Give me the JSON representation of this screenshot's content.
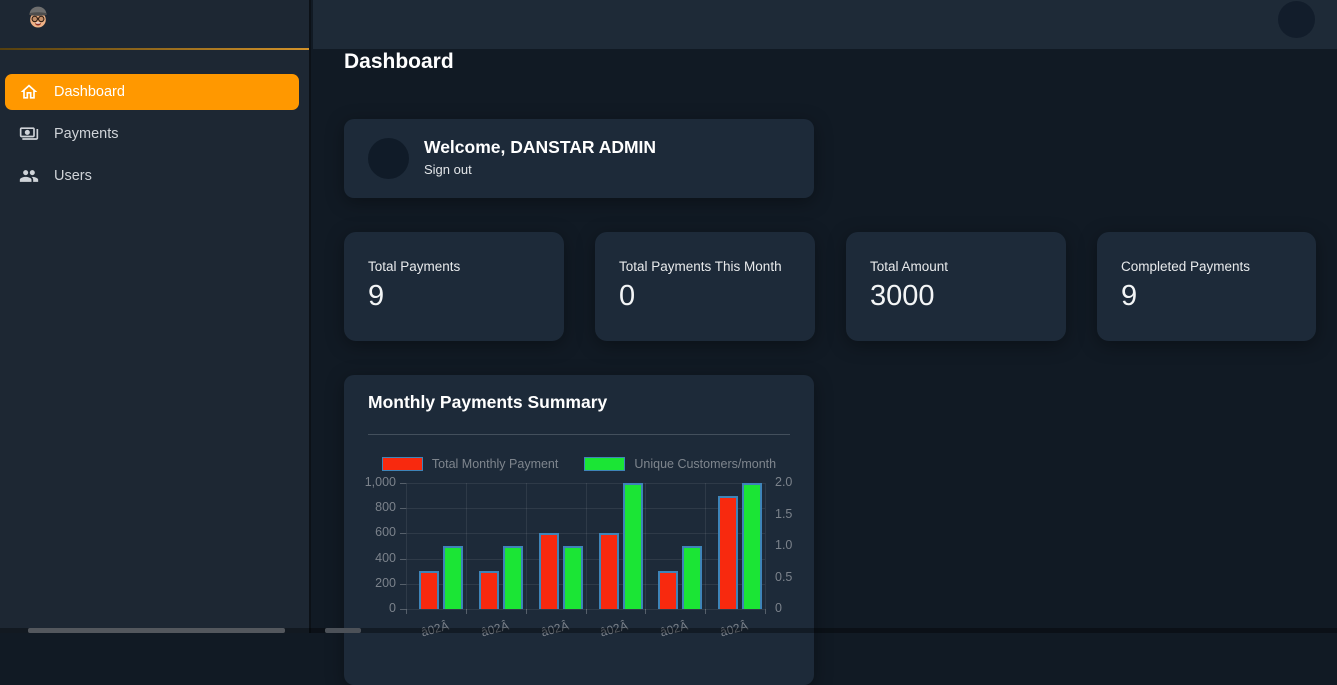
{
  "sidebar": {
    "logo_icon": "boy-with-cap-avatar-icon",
    "items": [
      {
        "label": "Dashboard",
        "icon": "home-icon",
        "active": true
      },
      {
        "label": "Payments",
        "icon": "payments-icon",
        "active": false
      },
      {
        "label": "Users",
        "icon": "users-icon",
        "active": false
      }
    ]
  },
  "topbar": {
    "avatar_icon": "user-avatar-circle"
  },
  "page": {
    "title": "Dashboard"
  },
  "welcome": {
    "heading": "Welcome, DANSTAR ADMIN",
    "signout_label": "Sign out"
  },
  "stats": [
    {
      "label": "Total Payments",
      "value": "9"
    },
    {
      "label": "Total Payments This Month",
      "value": "0"
    },
    {
      "label": "Total Amount",
      "value": "3000"
    },
    {
      "label": "Completed Payments",
      "value": "9"
    }
  ],
  "chart_card": {
    "title": "Monthly Payments Summary"
  },
  "chart_data": {
    "type": "bar",
    "title": "Monthly Payments Summary",
    "categories": [
      "â02Â",
      "â02Â",
      "â02Â",
      "â02Â",
      "â02Â",
      "â02Â"
    ],
    "series": [
      {
        "name": "Total Monthly Payment",
        "axis": "left",
        "color": "#f8290e",
        "values": [
          300,
          300,
          600,
          600,
          300,
          900
        ]
      },
      {
        "name": "Unique Customers/month",
        "axis": "right",
        "color": "#1be535",
        "values": [
          1,
          1,
          1,
          2,
          1,
          2
        ]
      }
    ],
    "left_axis": {
      "min": 0,
      "max": 1000,
      "tick_labels": [
        "0",
        "200",
        "400",
        "600",
        "800",
        "1,000"
      ]
    },
    "right_axis": {
      "min": 0,
      "max": 2,
      "tick_labels": [
        "0",
        "0.5",
        "1.0",
        "1.5",
        "2.0"
      ]
    },
    "legend_position": "top",
    "grid": true,
    "bar_border_color": "#3e84b8"
  },
  "colors": {
    "accent_orange": "#ff9800",
    "sidebar_bg": "#1d2733",
    "topbar_bg": "#1e2a37",
    "content_bg": "#111a24",
    "card_bg": "#1d2a39",
    "bar_red": "#f8290e",
    "bar_green": "#1be535",
    "bar_border": "#3e84b8"
  }
}
